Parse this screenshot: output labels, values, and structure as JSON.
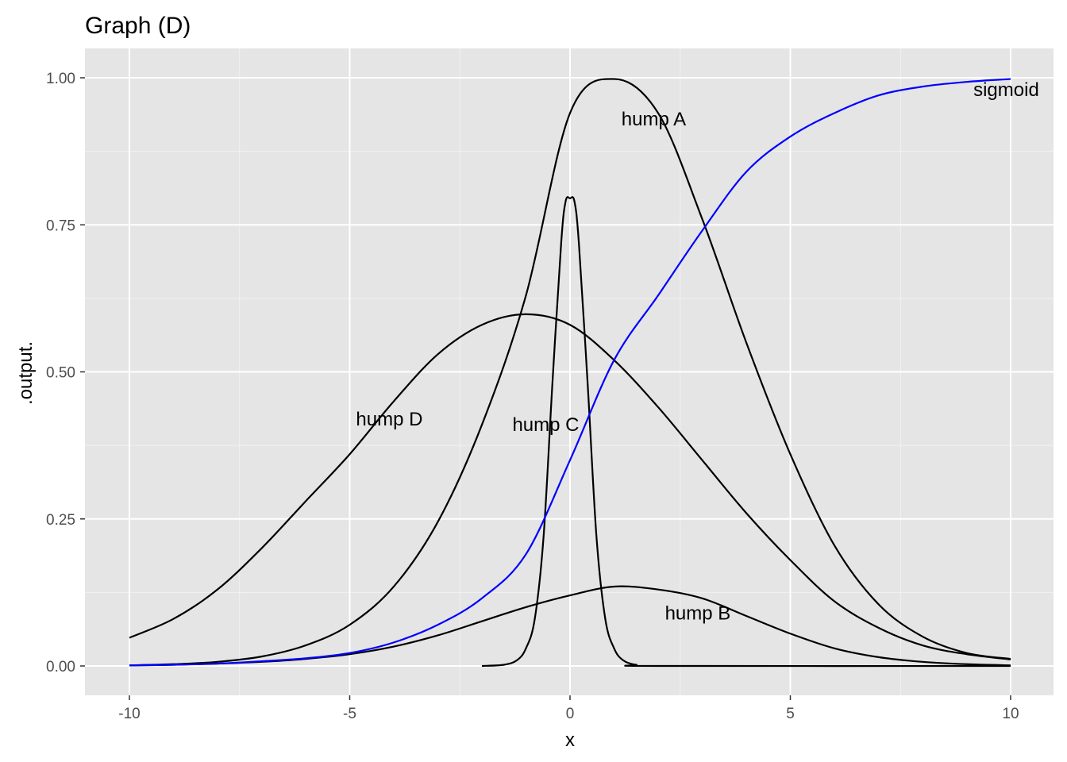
{
  "chart_data": {
    "type": "line",
    "title": "Graph (D)",
    "xlabel": "x",
    "ylabel": ".output.",
    "xlim": [
      -10,
      10
    ],
    "ylim": [
      0,
      1
    ],
    "x_ticks": [
      -10,
      -5,
      0,
      5,
      10
    ],
    "x_tick_labels": [
      "-10",
      "-5",
      "0",
      "5",
      "10"
    ],
    "y_ticks": [
      0,
      0.25,
      0.5,
      0.75,
      1
    ],
    "y_tick_labels": [
      "0.00",
      "0.25",
      "0.50",
      "0.75",
      "1.00"
    ],
    "grid": true,
    "background": "#e5e5e5",
    "series": [
      {
        "label": "hump A",
        "color": "#000000",
        "label_x": 1.9,
        "label_y": 0.93,
        "x": [
          -10,
          -9,
          -8,
          -7,
          -6,
          -5,
          -4,
          -3,
          -2,
          -1,
          0,
          1,
          2,
          3,
          4,
          5,
          6,
          7,
          8,
          9,
          10
        ],
        "y": [
          0.001,
          0.003,
          0.007,
          0.016,
          0.035,
          0.07,
          0.135,
          0.245,
          0.41,
          0.63,
          0.94,
          0.998,
          0.94,
          0.76,
          0.55,
          0.36,
          0.205,
          0.105,
          0.05,
          0.022,
          0.012
        ]
      },
      {
        "label": "hump B",
        "color": "#000000",
        "label_x": 2.9,
        "label_y": 0.09,
        "x": [
          -10,
          -9,
          -8,
          -7,
          -6,
          -5,
          -4,
          -3,
          -2,
          -1,
          0,
          1,
          2,
          3,
          4,
          5,
          6,
          7,
          8,
          9,
          10
        ],
        "y": [
          0.001,
          0.002,
          0.004,
          0.007,
          0.012,
          0.02,
          0.033,
          0.052,
          0.076,
          0.1,
          0.12,
          0.135,
          0.13,
          0.115,
          0.085,
          0.055,
          0.03,
          0.015,
          0.007,
          0.003,
          0.001
        ]
      },
      {
        "label": "hump C",
        "color": "#000000",
        "label_x": -0.55,
        "label_y": 0.41,
        "x": [
          -2,
          -1.5,
          -1.2,
          -1,
          -0.8,
          -0.6,
          -0.4,
          -0.2,
          -0.1,
          0,
          0.1,
          0.2,
          0.4,
          0.6,
          0.8,
          1,
          1.2,
          1.5,
          2,
          10
        ],
        "y": [
          0,
          0.002,
          0.01,
          0.03,
          0.08,
          0.22,
          0.48,
          0.72,
          0.79,
          0.795,
          0.79,
          0.72,
          0.48,
          0.22,
          0.08,
          0.03,
          0.01,
          0.002,
          0,
          0
        ]
      },
      {
        "label": "hump D",
        "color": "#000000",
        "label_x": -4.1,
        "label_y": 0.42,
        "x": [
          -10,
          -9,
          -8,
          -7,
          -6,
          -5,
          -4,
          -3,
          -2,
          -1,
          0,
          1,
          2,
          3,
          4,
          5,
          6,
          7,
          8,
          9,
          10
        ],
        "y": [
          0.048,
          0.08,
          0.13,
          0.2,
          0.28,
          0.36,
          0.45,
          0.53,
          0.58,
          0.598,
          0.58,
          0.52,
          0.44,
          0.35,
          0.26,
          0.18,
          0.11,
          0.065,
          0.035,
          0.02,
          0.011
        ]
      },
      {
        "label": "sigmoid",
        "color": "#0000ff",
        "label_x": 9.9,
        "label_y": 0.98,
        "x": [
          -10,
          -9,
          -8,
          -7,
          -6,
          -5,
          -4,
          -3,
          -2,
          -1,
          0,
          1,
          2,
          3,
          4,
          5,
          6,
          7,
          8,
          9,
          10
        ],
        "y": [
          0.001,
          0.002,
          0.004,
          0.008,
          0.013,
          0.022,
          0.04,
          0.07,
          0.115,
          0.19,
          0.35,
          0.52,
          0.63,
          0.74,
          0.84,
          0.9,
          0.94,
          0.97,
          0.985,
          0.993,
          0.998
        ]
      }
    ]
  }
}
